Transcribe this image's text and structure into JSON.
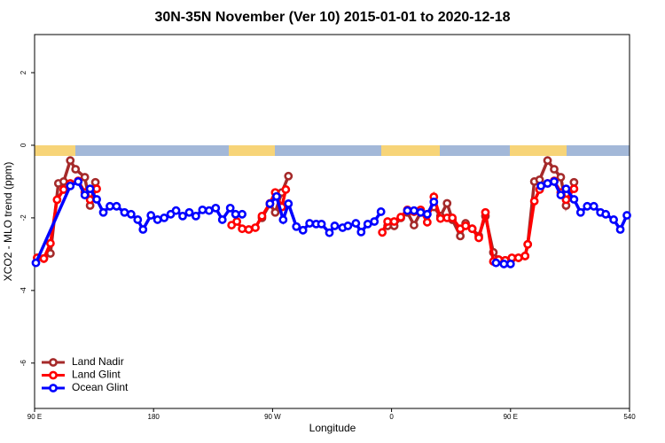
{
  "chart_data": {
    "type": "line",
    "title": "30N-35N November (Ver 10)   2015-01-01 to 2020-12-18",
    "x_label": "Longitude",
    "y_label": "XCO2 - MLO trend (ppm)",
    "xlim": [
      90,
      540
    ],
    "ylim": [
      -7.25,
      3.05
    ],
    "xticks": [
      {
        "value": 90,
        "label": "90 E"
      },
      180,
      {
        "value": 270,
        "label": "90 W"
      },
      {
        "value": 360,
        "label": "0"
      },
      {
        "value": 450,
        "label": "90 E"
      },
      540
    ],
    "yticks": [
      -6,
      -4,
      -2,
      0,
      2
    ],
    "legend": "bottom-left",
    "series": [
      {
        "name": "Land Nadir",
        "color": "#a52a2a",
        "x": [
          92,
          97,
          102,
          108,
          112,
          117,
          121,
          128,
          132,
          136,
          null,
          262,
          268,
          272,
          277,
          282,
          null,
          357,
          362,
          367,
          372,
          377,
          382,
          387,
          392,
          397,
          402,
          406,
          412,
          416,
          421,
          426,
          431,
          437,
          441,
          446,
          451,
          456,
          461,
          463,
          468,
          472,
          478,
          483,
          488,
          492,
          498
        ],
        "values": [
          -3.1,
          -3.12,
          -2.98,
          -1.05,
          -1.0,
          -0.42,
          -0.66,
          -0.88,
          -1.66,
          -1.02,
          null,
          -2.0,
          -1.62,
          -1.85,
          -1.3,
          -0.85,
          null,
          -2.22,
          -2.22,
          -2.0,
          -1.85,
          -2.2,
          -1.85,
          -1.9,
          -1.7,
          -1.95,
          -1.6,
          -2.05,
          -2.5,
          -2.15,
          -2.3,
          -2.5,
          -1.95,
          -2.95,
          -3.15,
          -3.17,
          -3.12,
          -3.1,
          -3.05,
          -2.73,
          -1.0,
          -0.95,
          -0.42,
          -0.66,
          -0.88,
          -1.66,
          -1.02
        ]
      },
      {
        "name": "Land Glint",
        "color": "#ff0000",
        "x": [
          92,
          97,
          102,
          107,
          112,
          117,
          123,
          128,
          132,
          137,
          null,
          239,
          243,
          247,
          252,
          257,
          262,
          268,
          272,
          277,
          280,
          null,
          353,
          357,
          362,
          367,
          372,
          377,
          382,
          387,
          392,
          397,
          402,
          406,
          412,
          416,
          421,
          426,
          431,
          437,
          441,
          446,
          451,
          456,
          461,
          463,
          468,
          472,
          478,
          483,
          488,
          492,
          498
        ],
        "values": [
          -3.1,
          -3.12,
          -2.7,
          -1.5,
          -1.22,
          -1.05,
          -0.98,
          -1.3,
          -1.5,
          -1.2,
          null,
          -2.2,
          -2.1,
          -2.3,
          -2.32,
          -2.27,
          -1.95,
          -1.6,
          -1.3,
          -1.7,
          -1.22,
          null,
          -2.4,
          -2.1,
          -2.1,
          -1.98,
          -1.78,
          -1.83,
          -1.78,
          -2.12,
          -1.42,
          -2.02,
          -2.0,
          -2.0,
          -2.3,
          -2.22,
          -2.3,
          -2.55,
          -1.85,
          -3.2,
          -3.15,
          -3.17,
          -3.1,
          -3.1,
          -3.05,
          -2.73,
          -1.54,
          -1.22,
          -1.05,
          -0.98,
          -1.3,
          -1.5,
          -1.2
        ]
      },
      {
        "name": "Ocean Glint",
        "color": "#0000ff",
        "x": [
          91,
          117,
          123,
          128,
          132,
          137,
          142,
          147,
          152,
          158,
          163,
          168,
          172,
          178,
          183,
          188,
          193,
          197,
          202,
          207,
          212,
          217,
          222,
          227,
          232,
          238,
          242,
          247,
          null,
          268,
          273,
          278,
          282,
          288,
          293,
          298,
          303,
          307,
          313,
          317,
          323,
          327,
          333,
          337,
          342,
          347,
          352,
          null,
          372,
          377,
          382,
          387,
          392,
          null,
          439,
          445,
          450,
          null,
          473,
          478,
          483,
          488,
          492,
          498,
          503,
          508,
          513,
          518,
          522,
          528,
          533,
          538
        ],
        "values": [
          -3.24,
          -1.12,
          -1.0,
          -1.37,
          -1.2,
          -1.49,
          -1.85,
          -1.68,
          -1.68,
          -1.85,
          -1.9,
          -2.05,
          -2.32,
          -1.93,
          -2.05,
          -2.0,
          -1.9,
          -1.8,
          -1.95,
          -1.85,
          -1.95,
          -1.78,
          -1.8,
          -1.73,
          -2.05,
          -1.73,
          -1.9,
          -1.9,
          null,
          -1.61,
          -1.41,
          -2.05,
          -1.61,
          -2.24,
          -2.34,
          -2.15,
          -2.17,
          -2.17,
          -2.41,
          -2.22,
          -2.27,
          -2.22,
          -2.15,
          -2.39,
          -2.17,
          -2.1,
          -1.83,
          null,
          -1.8,
          -1.8,
          -1.85,
          -1.9,
          -1.56,
          null,
          -3.24,
          -3.27,
          -3.27,
          null,
          -1.12,
          -1.05,
          -1.0,
          -1.37,
          -1.2,
          -1.49,
          -1.85,
          -1.68,
          -1.68,
          -1.85,
          -1.9,
          -2.05,
          -2.32,
          -1.93
        ]
      }
    ]
  }
}
